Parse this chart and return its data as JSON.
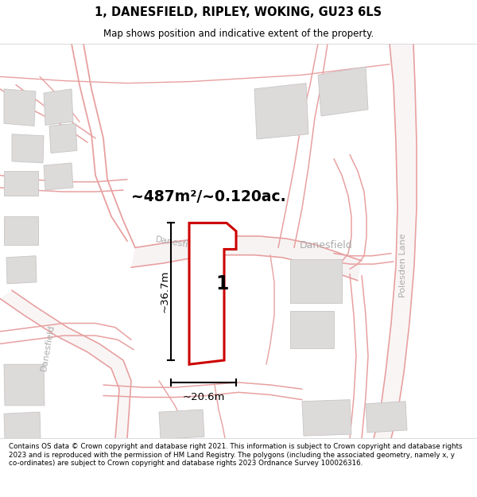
{
  "title_line1": "1, DANESFIELD, RIPLEY, WOKING, GU23 6LS",
  "title_line2": "Map shows position and indicative extent of the property.",
  "area_text": "~487m²/~0.120ac.",
  "width_text": "~20.6m",
  "height_text": "~36.7m",
  "plot_number": "1",
  "map_bg": "#f7f5f5",
  "road_color": "#e8a0a0",
  "road_fill": "#f7f2f2",
  "building_fill": "#dddada",
  "building_edge": "#c8c5c5",
  "property_color": "#cc0000",
  "property_fill": "#ffffff",
  "dim_color": "#1a1a1a",
  "street_label_color": "#aaaaaa",
  "footer_text": "Contains OS data © Crown copyright and database right 2021. This information is subject to Crown copyright and database rights 2023 and is reproduced with the permission of HM Land Registry. The polygons (including the associated geometry, namely x, y co-ordinates) are subject to Crown copyright and database rights 2023 Ordnance Survey 100026316."
}
